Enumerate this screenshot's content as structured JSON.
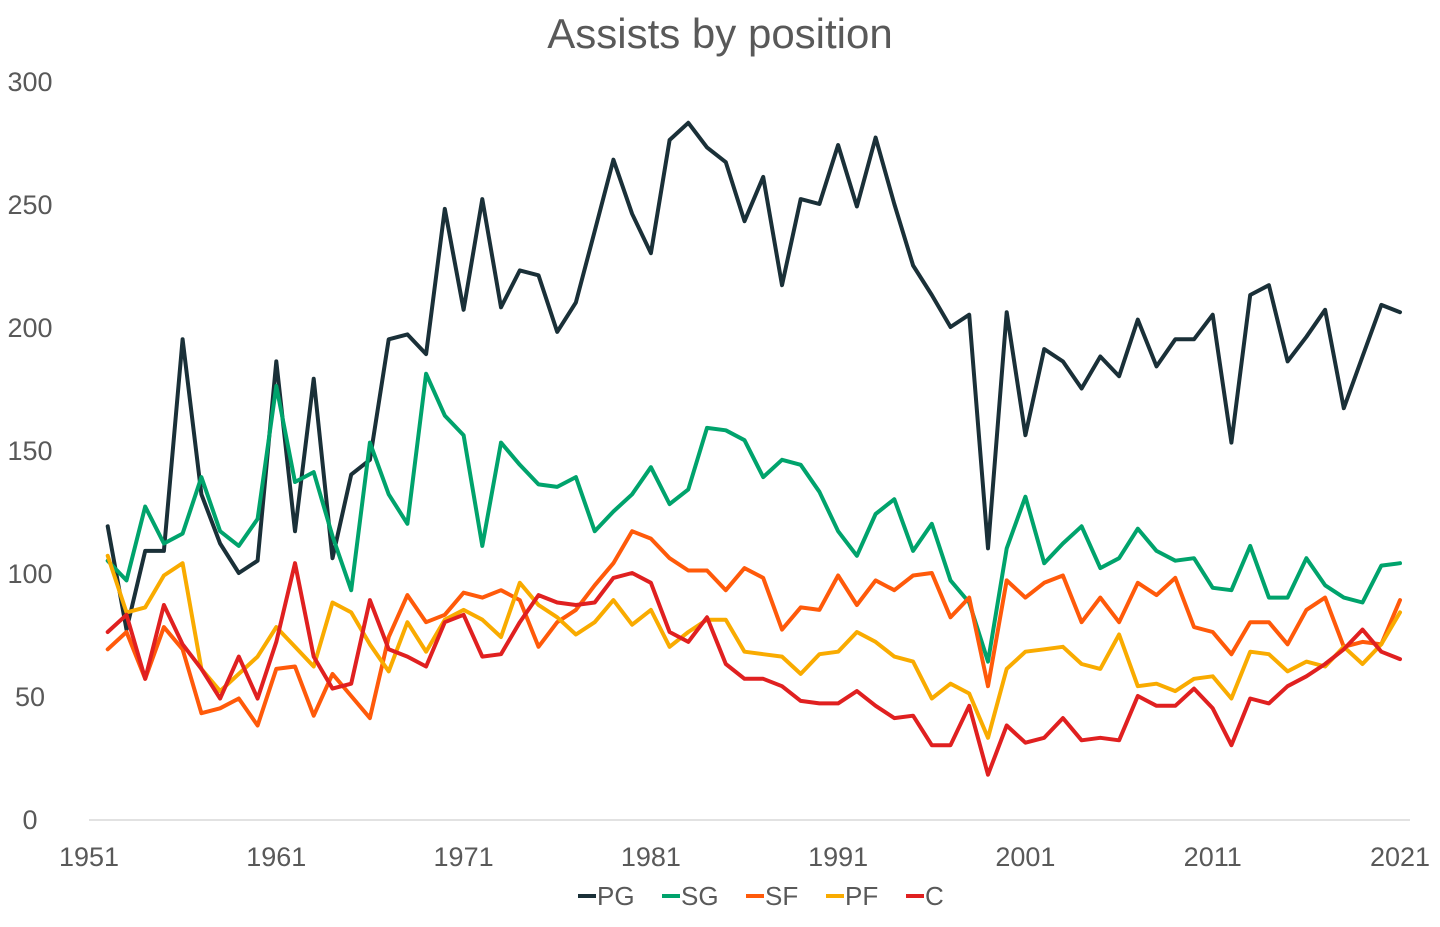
{
  "chart_data": {
    "type": "line",
    "title": "Assists by position",
    "xlabel": "",
    "ylabel": "",
    "ylim": [
      0,
      300
    ],
    "xlim": [
      1951,
      2021
    ],
    "y_ticks": [
      "0",
      "50",
      "100",
      "150",
      "200",
      "250",
      "300"
    ],
    "x_ticks": [
      "1951",
      "1961",
      "1971",
      "1981",
      "1991",
      "2001",
      "2011",
      "2021"
    ],
    "grid": false,
    "legend_position": "bottom",
    "x": [
      1952,
      1953,
      1954,
      1955,
      1956,
      1957,
      1958,
      1959,
      1960,
      1961,
      1962,
      1963,
      1964,
      1965,
      1966,
      1967,
      1968,
      1969,
      1970,
      1971,
      1972,
      1973,
      1974,
      1975,
      1976,
      1977,
      1978,
      1979,
      1980,
      1981,
      1982,
      1983,
      1984,
      1985,
      1986,
      1987,
      1988,
      1989,
      1990,
      1991,
      1992,
      1993,
      1994,
      1995,
      1996,
      1997,
      1998,
      1999,
      2000,
      2001,
      2002,
      2003,
      2004,
      2005,
      2006,
      2007,
      2008,
      2009,
      2010,
      2011,
      2012,
      2013,
      2014,
      2015,
      2016,
      2017,
      2018,
      2019,
      2020,
      2021
    ],
    "series": [
      {
        "name": "PG",
        "color": "#1a3038",
        "values": [
          119,
          77,
          109,
          109,
          195,
          132,
          112,
          100,
          105,
          186,
          117,
          179,
          106,
          140,
          146,
          195,
          197,
          189,
          248,
          207,
          252,
          208,
          223,
          221,
          198,
          210,
          239,
          268,
          246,
          230,
          276,
          283,
          273,
          267,
          243,
          261,
          217,
          252,
          250,
          274,
          249,
          277,
          250,
          225,
          213,
          200,
          205,
          110,
          206,
          156,
          191,
          186,
          175,
          188,
          180,
          203,
          184,
          195,
          195,
          205,
          153,
          213,
          217,
          186,
          196,
          207,
          167,
          188,
          209,
          206
        ]
      },
      {
        "name": "SG",
        "color": "#00a36c",
        "values": [
          105,
          97,
          127,
          112,
          116,
          139,
          117,
          111,
          122,
          176,
          137,
          141,
          115,
          93,
          153,
          132,
          120,
          181,
          164,
          156,
          111,
          153,
          144,
          136,
          135,
          139,
          117,
          125,
          132,
          143,
          128,
          134,
          159,
          158,
          154,
          139,
          146,
          144,
          133,
          117,
          107,
          124,
          130,
          109,
          120,
          97,
          88,
          64,
          110,
          131,
          104,
          112,
          119,
          102,
          106,
          118,
          109,
          105,
          106,
          94,
          93,
          111,
          90,
          90,
          106,
          95,
          90,
          88,
          103,
          104
        ]
      },
      {
        "name": "SF",
        "color": "#ff5a0a",
        "values": [
          69,
          76,
          57,
          78,
          69,
          43,
          45,
          49,
          38,
          61,
          62,
          42,
          59,
          50,
          41,
          74,
          91,
          80,
          83,
          92,
          90,
          93,
          89,
          70,
          80,
          85,
          95,
          104,
          117,
          114,
          106,
          101,
          101,
          93,
          102,
          98,
          77,
          86,
          85,
          99,
          87,
          97,
          93,
          99,
          100,
          82,
          90,
          54,
          97,
          90,
          96,
          99,
          80,
          90,
          80,
          96,
          91,
          98,
          78,
          76,
          67,
          80,
          80,
          71,
          85,
          90,
          70,
          72,
          71,
          89
        ]
      },
      {
        "name": "PF",
        "color": "#f9ab00",
        "values": [
          107,
          84,
          86,
          99,
          104,
          61,
          52,
          59,
          66,
          78,
          70,
          62,
          88,
          84,
          71,
          60,
          80,
          68,
          81,
          85,
          81,
          74,
          96,
          87,
          82,
          75,
          80,
          89,
          79,
          85,
          70,
          76,
          81,
          81,
          68,
          67,
          66,
          59,
          67,
          68,
          76,
          72,
          66,
          64,
          49,
          55,
          51,
          33,
          61,
          68,
          69,
          70,
          63,
          61,
          75,
          54,
          55,
          52,
          57,
          58,
          49,
          68,
          67,
          60,
          64,
          62,
          70,
          63,
          71,
          84
        ]
      },
      {
        "name": "C",
        "color": "#e02020",
        "values": [
          76,
          83,
          57,
          87,
          71,
          61,
          49,
          66,
          49,
          72,
          104,
          66,
          53,
          55,
          89,
          69,
          66,
          62,
          80,
          83,
          66,
          67,
          80,
          91,
          88,
          87,
          88,
          98,
          100,
          96,
          76,
          72,
          82,
          63,
          57,
          57,
          54,
          48,
          47,
          47,
          52,
          46,
          41,
          42,
          30,
          30,
          46,
          18,
          38,
          31,
          33,
          41,
          32,
          33,
          32,
          50,
          46,
          46,
          53,
          45,
          30,
          49,
          47,
          54,
          58,
          63,
          69,
          77,
          68,
          65
        ]
      }
    ]
  }
}
